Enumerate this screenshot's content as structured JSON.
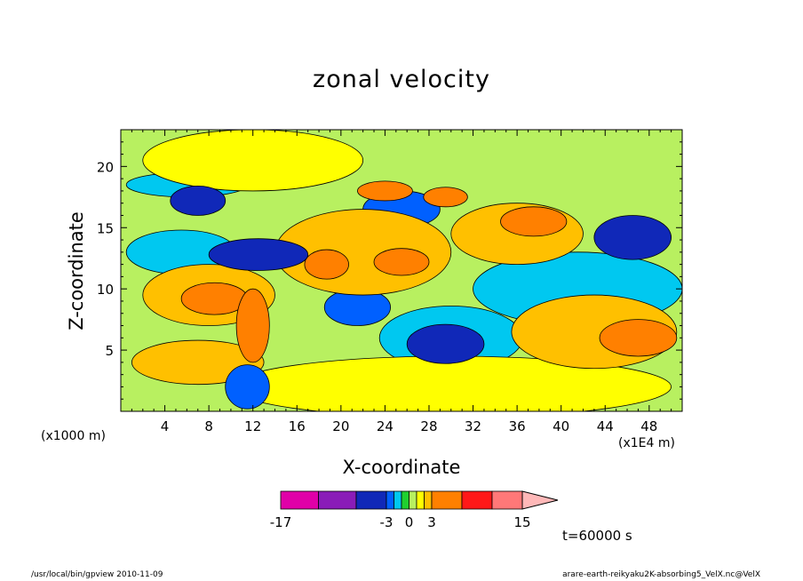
{
  "title": "zonal velocity",
  "x_unit_left": "(x1000 m)",
  "x_unit_right": "(x1E4 m)",
  "time_label": "t=60000 s",
  "footer_left": "/usr/local/bin/gpview   2010-11-09",
  "footer_right": "arare-earth-reikyaku2K-absorbing5_VelX.nc@VelX",
  "chart_data": {
    "type": "heatmap",
    "title": "zonal velocity",
    "xlabel": "X-coordinate",
    "ylabel": "Z-coordinate",
    "xlim": [
      0,
      51
    ],
    "ylim": [
      0,
      23
    ],
    "x_ticks": [
      "4",
      "8",
      "12",
      "16",
      "20",
      "24",
      "28",
      "32",
      "36",
      "40",
      "44",
      "48"
    ],
    "x_tick_values": [
      4,
      8,
      12,
      16,
      20,
      24,
      28,
      32,
      36,
      40,
      44,
      48
    ],
    "y_ticks": [
      "5",
      "10",
      "15",
      "20"
    ],
    "y_tick_values": [
      5,
      10,
      15,
      20
    ],
    "colorbar": {
      "labels": [
        "-17",
        "-3",
        "0",
        "3",
        "15"
      ],
      "label_values": [
        -17,
        -3,
        0,
        3,
        15
      ],
      "bins": [
        {
          "from": -17,
          "to": -12,
          "color": "#e000a8"
        },
        {
          "from": -12,
          "to": -7,
          "color": "#8a1cb8"
        },
        {
          "from": -7,
          "to": -3,
          "color": "#1028b8"
        },
        {
          "from": -3,
          "to": -2,
          "color": "#0060ff"
        },
        {
          "from": -2,
          "to": -1,
          "color": "#00c8f0"
        },
        {
          "from": -1,
          "to": 0,
          "color": "#20d030"
        },
        {
          "from": 0,
          "to": 1,
          "color": "#b8f060"
        },
        {
          "from": 1,
          "to": 2,
          "color": "#ffff00"
        },
        {
          "from": 2,
          "to": 3,
          "color": "#ffc000"
        },
        {
          "from": 3,
          "to": 7,
          "color": "#ff8000"
        },
        {
          "from": 7,
          "to": 11,
          "color": "#ff1818"
        },
        {
          "from": 11,
          "to": 15,
          "color": "#ff7878"
        },
        {
          "from": 15,
          "to": 18,
          "color": "#ffb8b8"
        }
      ]
    },
    "regions": [
      {
        "x": 46.5,
        "z": 14.2,
        "rx": 3.5,
        "rz": 1.8,
        "value": -5
      },
      {
        "x": 29.5,
        "z": 5.5,
        "rx": 3.5,
        "rz": 1.6,
        "value": -5
      },
      {
        "x": 12.5,
        "z": 12.8,
        "rx": 4.5,
        "rz": 1.3,
        "value": -5
      },
      {
        "x": 7.0,
        "z": 17.2,
        "rx": 2.5,
        "rz": 1.2,
        "value": -4
      },
      {
        "x": 25.5,
        "z": 16.5,
        "rx": 3.5,
        "rz": 1.5,
        "value": -2.5
      },
      {
        "x": 21.5,
        "z": 8.5,
        "rx": 3.0,
        "rz": 1.5,
        "value": -2.5
      },
      {
        "x": 11.5,
        "z": 2.0,
        "rx": 2.0,
        "rz": 1.8,
        "value": -3
      },
      {
        "x": 41.5,
        "z": 10.0,
        "rx": 9.5,
        "rz": 3.0,
        "value": -1.5
      },
      {
        "x": 30.0,
        "z": 6.0,
        "rx": 6.5,
        "rz": 2.6,
        "value": -1.5
      },
      {
        "x": 5.5,
        "z": 13.0,
        "rx": 5.0,
        "rz": 1.8,
        "value": -1.5
      },
      {
        "x": 6.0,
        "z": 18.5,
        "rx": 5.5,
        "rz": 1.0,
        "value": -1.5
      },
      {
        "x": 47.0,
        "z": 6.0,
        "rx": 3.5,
        "rz": 1.5,
        "value": 4
      },
      {
        "x": 37.5,
        "z": 15.5,
        "rx": 3.0,
        "rz": 1.2,
        "value": 4
      },
      {
        "x": 25.5,
        "z": 12.2,
        "rx": 2.5,
        "rz": 1.1,
        "value": 4
      },
      {
        "x": 18.7,
        "z": 12.0,
        "rx": 2.0,
        "rz": 1.2,
        "value": 4
      },
      {
        "x": 8.5,
        "z": 9.2,
        "rx": 3.0,
        "rz": 1.3,
        "value": 4
      },
      {
        "x": 24.0,
        "z": 18.0,
        "rx": 2.5,
        "rz": 0.8,
        "value": 4
      },
      {
        "x": 29.5,
        "z": 17.5,
        "rx": 2.0,
        "rz": 0.8,
        "value": 4
      },
      {
        "x": 12.0,
        "z": 7.0,
        "rx": 1.5,
        "rz": 3.0,
        "value": 6
      },
      {
        "x": 43.0,
        "z": 6.5,
        "rx": 7.5,
        "rz": 3.0,
        "value": 2.5
      },
      {
        "x": 36.0,
        "z": 14.5,
        "rx": 6.0,
        "rz": 2.5,
        "value": 2.5
      },
      {
        "x": 8.0,
        "z": 9.5,
        "rx": 6.0,
        "rz": 2.5,
        "value": 2.5
      },
      {
        "x": 7.0,
        "z": 4.0,
        "rx": 6.0,
        "rz": 1.8,
        "value": 2.5
      },
      {
        "x": 22.0,
        "z": 13.0,
        "rx": 8.0,
        "rz": 3.5,
        "value": 2.5
      },
      {
        "x": 30.0,
        "z": 2.0,
        "rx": 20.0,
        "rz": 2.5,
        "value": 1.5
      },
      {
        "x": 12.0,
        "z": 20.5,
        "rx": 10.0,
        "rz": 2.5,
        "value": 1.5
      }
    ]
  }
}
